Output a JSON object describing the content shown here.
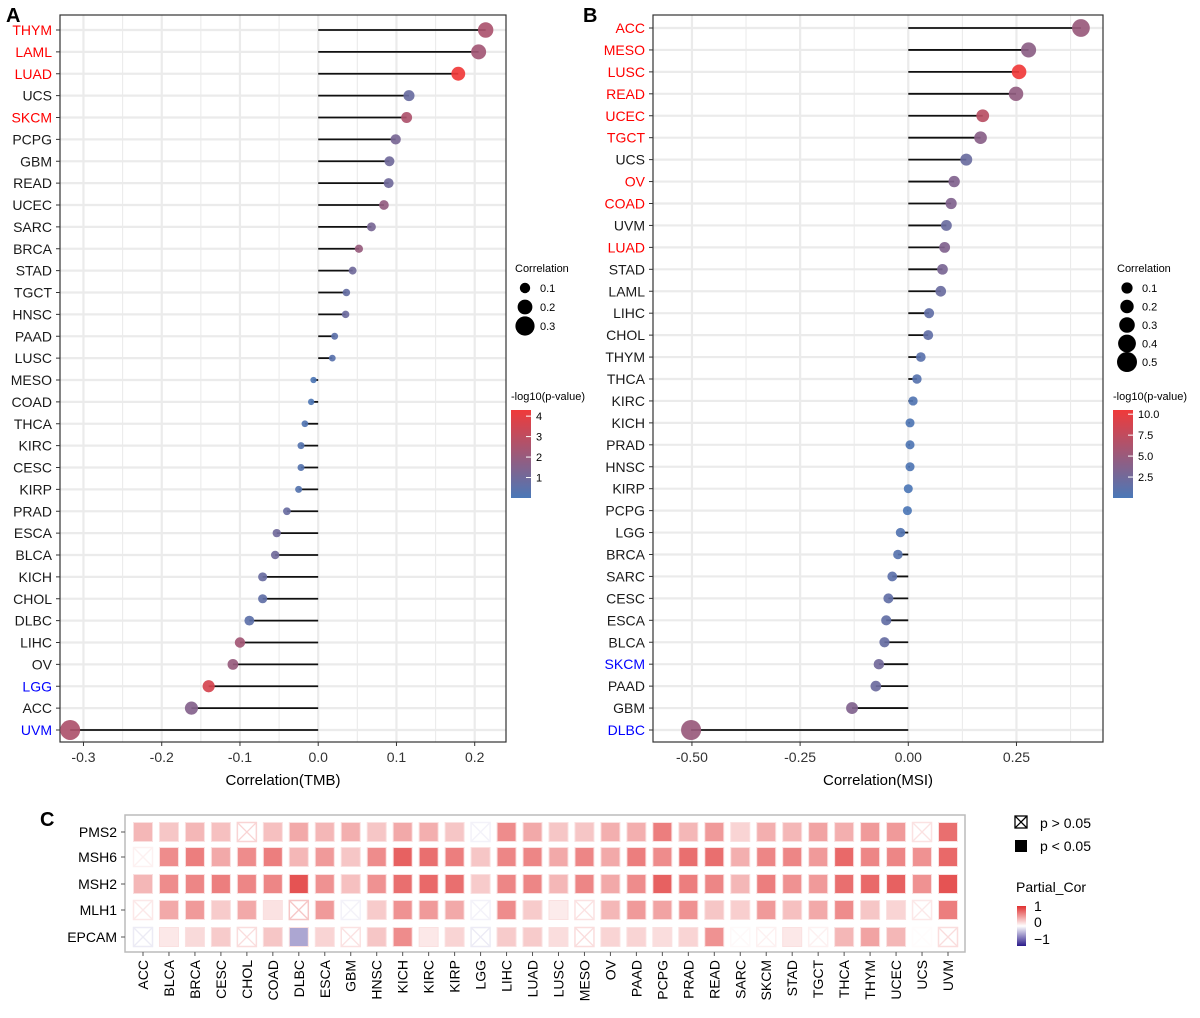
{
  "chart_data": [
    {
      "panel": "A",
      "type": "lollipop",
      "xlabel": "Correlation(TMB)",
      "xlim": [
        -0.33,
        0.24
      ],
      "xticks": [
        "-0.3",
        "-0.2",
        "-0.1",
        "0.0",
        "0.1",
        "0.2"
      ],
      "grid": true,
      "size_legend": {
        "title": "Correlation",
        "labels": [
          "0.1",
          "0.2",
          "0.3"
        ]
      },
      "color_legend": {
        "title": "-log10(p-value)",
        "labels": [
          "1",
          "2",
          "3",
          "4"
        ],
        "range": [
          0,
          4.3
        ],
        "low": "#4a78b8",
        "high": "#f03a3a"
      },
      "categories": [
        "THYM",
        "LAML",
        "LUAD",
        "UCS",
        "SKCM",
        "PCPG",
        "GBM",
        "READ",
        "UCEC",
        "SARC",
        "BRCA",
        "STAD",
        "TGCT",
        "HNSC",
        "PAAD",
        "LUSC",
        "MESO",
        "COAD",
        "THCA",
        "KIRC",
        "CESC",
        "KIRP",
        "PRAD",
        "ESCA",
        "BLCA",
        "KICH",
        "CHOL",
        "DLBC",
        "LIHC",
        "OV",
        "LGG",
        "ACC",
        "UVM"
      ],
      "values": [
        0.214,
        0.205,
        0.179,
        0.116,
        0.113,
        0.099,
        0.091,
        0.09,
        0.084,
        0.068,
        0.052,
        0.044,
        0.036,
        0.035,
        0.021,
        0.018,
        -0.006,
        -0.009,
        -0.017,
        -0.022,
        -0.022,
        -0.025,
        -0.04,
        -0.053,
        -0.055,
        -0.071,
        -0.071,
        -0.088,
        -0.1,
        -0.109,
        -0.14,
        -0.162,
        -0.317
      ],
      "neg_log10_p": [
        2.5,
        2.3,
        4.3,
        0.8,
        2.6,
        1.2,
        1.0,
        1.0,
        1.9,
        1.2,
        2.0,
        1.0,
        0.7,
        0.9,
        0.5,
        0.4,
        0.1,
        0.1,
        0.2,
        0.3,
        0.3,
        0.3,
        0.8,
        1.0,
        1.0,
        0.8,
        0.6,
        0.5,
        2.3,
        2.0,
        3.6,
        1.5,
        2.6
      ],
      "label_colors": {
        "THYM": "#ff0000",
        "LAML": "#ff0000",
        "LUAD": "#ff0000",
        "SKCM": "#ff0000",
        "LGG": "#0000ff",
        "UVM": "#0000ff"
      }
    },
    {
      "panel": "B",
      "type": "lollipop",
      "xlabel": "Correlation(MSI)",
      "xlim": [
        -0.59,
        0.45
      ],
      "xticks": [
        "-0.50",
        "-0.25",
        "0.00",
        "0.25"
      ],
      "grid": true,
      "size_legend": {
        "title": "Correlation",
        "labels": [
          "0.1",
          "0.2",
          "0.3",
          "0.4",
          "0.5"
        ]
      },
      "color_legend": {
        "title": "-log10(p-value)",
        "labels": [
          "2.5",
          "5.0",
          "7.5",
          "10.0"
        ],
        "range": [
          0,
          10.5
        ],
        "low": "#4a78b8",
        "high": "#f03a3a"
      },
      "categories": [
        "ACC",
        "MESO",
        "LUSC",
        "READ",
        "UCEC",
        "TGCT",
        "UCS",
        "OV",
        "COAD",
        "UVM",
        "LUAD",
        "STAD",
        "LAML",
        "LIHC",
        "CHOL",
        "THYM",
        "THCA",
        "KIRC",
        "KICH",
        "PRAD",
        "HNSC",
        "KIRP",
        "PCPG",
        "LGG",
        "BRCA",
        "SARC",
        "CESC",
        "ESCA",
        "BLCA",
        "SKCM",
        "PAAD",
        "GBM",
        "DLBC"
      ],
      "values": [
        0.399,
        0.278,
        0.256,
        0.249,
        0.172,
        0.167,
        0.134,
        0.106,
        0.099,
        0.088,
        0.084,
        0.079,
        0.075,
        0.048,
        0.046,
        0.029,
        0.02,
        0.011,
        0.004,
        0.004,
        0.004,
        0.0,
        -0.002,
        -0.018,
        -0.024,
        -0.037,
        -0.046,
        -0.051,
        -0.055,
        -0.068,
        -0.075,
        -0.13,
        -0.502
      ],
      "neg_log10_p": [
        5.0,
        4.2,
        10.5,
        4.6,
        7.0,
        4.0,
        2.0,
        3.5,
        3.5,
        2.0,
        3.5,
        3.0,
        2.0,
        1.5,
        1.5,
        1.0,
        0.8,
        0.5,
        0.3,
        0.3,
        0.3,
        0.2,
        0.2,
        0.6,
        0.8,
        1.2,
        1.5,
        1.6,
        1.8,
        2.5,
        2.2,
        3.5,
        5.0
      ],
      "label_colors": {
        "ACC": "#ff0000",
        "MESO": "#ff0000",
        "LUSC": "#ff0000",
        "READ": "#ff0000",
        "UCEC": "#ff0000",
        "TGCT": "#ff0000",
        "OV": "#ff0000",
        "COAD": "#ff0000",
        "LUAD": "#ff0000",
        "SKCM": "#0000ff",
        "DLBC": "#0000ff"
      }
    },
    {
      "panel": "C",
      "type": "heatmap",
      "rows": [
        "PMS2",
        "MSH6",
        "MSH2",
        "MLH1",
        "EPCAM"
      ],
      "columns": [
        "ACC",
        "BLCA",
        "BRCA",
        "CESC",
        "CHOL",
        "COAD",
        "DLBC",
        "ESCA",
        "GBM",
        "HNSC",
        "KICH",
        "KIRC",
        "KIRP",
        "LGG",
        "LIHC",
        "LUAD",
        "LUSC",
        "MESO",
        "OV",
        "PAAD",
        "PCPG",
        "PRAD",
        "READ",
        "SARC",
        "SKCM",
        "STAD",
        "TGCT",
        "THCA",
        "THYM",
        "UCEC",
        "UCS",
        "UVM"
      ],
      "values": [
        [
          0.25,
          0.2,
          0.25,
          0.22,
          0.15,
          0.22,
          0.3,
          0.25,
          0.28,
          0.2,
          0.3,
          0.28,
          0.2,
          -0.05,
          0.4,
          0.3,
          0.2,
          0.2,
          0.28,
          0.28,
          0.45,
          0.25,
          0.35,
          0.15,
          0.28,
          0.25,
          0.32,
          0.28,
          0.35,
          0.35,
          0.1,
          0.5
        ],
        [
          0.05,
          0.4,
          0.45,
          0.3,
          0.4,
          0.45,
          0.25,
          0.35,
          0.2,
          0.4,
          0.55,
          0.5,
          0.45,
          0.2,
          0.42,
          0.42,
          0.3,
          0.42,
          0.3,
          0.45,
          0.4,
          0.5,
          0.5,
          0.28,
          0.42,
          0.42,
          0.35,
          0.52,
          0.42,
          0.42,
          0.38,
          0.52
        ],
        [
          0.25,
          0.4,
          0.42,
          0.45,
          0.42,
          0.42,
          0.6,
          0.38,
          0.22,
          0.38,
          0.5,
          0.52,
          0.5,
          0.18,
          0.42,
          0.42,
          0.25,
          0.42,
          0.3,
          0.4,
          0.55,
          0.45,
          0.42,
          0.25,
          0.45,
          0.38,
          0.35,
          0.5,
          0.52,
          0.55,
          0.38,
          0.6
        ],
        [
          0.08,
          0.3,
          0.35,
          0.18,
          0.3,
          0.1,
          0.2,
          0.35,
          -0.05,
          0.18,
          0.38,
          0.35,
          0.3,
          -0.05,
          0.4,
          0.18,
          0.07,
          0.1,
          0.25,
          0.35,
          0.32,
          0.38,
          0.2,
          0.17,
          0.35,
          0.22,
          0.3,
          0.4,
          0.2,
          0.15,
          0.08,
          0.45
        ],
        [
          -0.08,
          0.08,
          0.13,
          0.18,
          0.12,
          0.2,
          -0.35,
          0.15,
          0.1,
          0.2,
          0.4,
          0.08,
          0.15,
          -0.08,
          0.18,
          0.18,
          0.12,
          0.12,
          0.15,
          0.15,
          0.12,
          0.15,
          0.38,
          0.02,
          0.05,
          0.08,
          0.05,
          0.25,
          0.32,
          0.25,
          0.01,
          0.12
        ]
      ],
      "not_significant": [
        [
          "CHOL",
          "LGG",
          "UCS"
        ],
        [
          "ACC"
        ],
        [],
        [
          "ACC",
          "DLBC",
          "GBM",
          "LGG",
          "MESO",
          "UCS"
        ],
        [
          "ACC",
          "CHOL",
          "GBM",
          "LGG",
          "MESO",
          "SARC",
          "SKCM",
          "TGCT",
          "UCS",
          "UVM"
        ]
      ],
      "legend": {
        "ns_label": "p > 0.05",
        "sig_label": "p < 0.05",
        "color_title": "Partial_Cor",
        "color_labels": [
          "1",
          "0",
          "−1"
        ],
        "range": [
          -1,
          1
        ],
        "low": "#2a1a8a",
        "mid": "#ffffff",
        "high": "#e03030"
      }
    }
  ],
  "panel_labels": [
    "A",
    "B",
    "C"
  ]
}
